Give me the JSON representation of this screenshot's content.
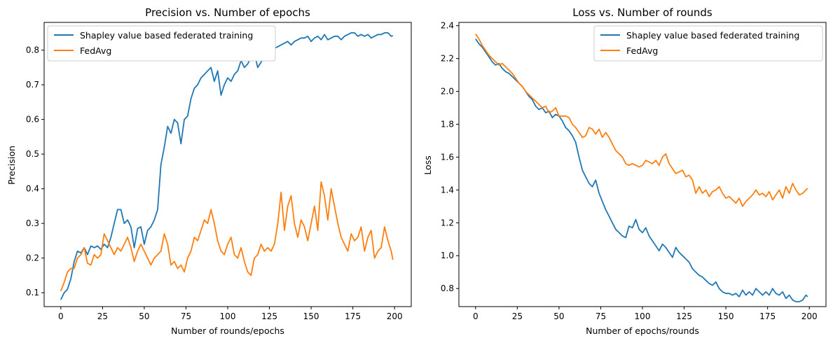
{
  "chart_data": [
    {
      "type": "line",
      "title": "Precision vs. Number of epochs",
      "xlabel": "Number of rounds/epochs",
      "ylabel": "Precision",
      "xlim": [
        -10,
        210
      ],
      "ylim": [
        0.06,
        0.88
      ],
      "xticks": [
        0,
        25,
        50,
        75,
        100,
        125,
        150,
        175,
        200
      ],
      "xtick_labels": [
        "0",
        "25",
        "50",
        "75",
        "100",
        "125",
        "150",
        "175",
        "200"
      ],
      "yticks": [
        0.1,
        0.2,
        0.3,
        0.4,
        0.5,
        0.6,
        0.7,
        0.8
      ],
      "ytick_labels": [
        "0.1",
        "0.2",
        "0.3",
        "0.4",
        "0.5",
        "0.6",
        "0.7",
        "0.8"
      ],
      "legend_position": "top-left",
      "grid": false,
      "series": [
        {
          "name": "Shapley value based federated training",
          "color": "#1f77b4",
          "x": [
            0,
            2,
            4,
            6,
            8,
            10,
            12,
            14,
            16,
            18,
            20,
            22,
            24,
            26,
            28,
            30,
            32,
            34,
            36,
            38,
            40,
            42,
            44,
            46,
            48,
            50,
            52,
            54,
            56,
            58,
            60,
            62,
            64,
            66,
            68,
            70,
            72,
            74,
            76,
            78,
            80,
            82,
            84,
            86,
            88,
            90,
            92,
            94,
            96,
            98,
            100,
            102,
            104,
            106,
            108,
            110,
            112,
            114,
            116,
            118,
            120,
            122,
            124,
            126,
            128,
            130,
            132,
            134,
            136,
            138,
            140,
            142,
            144,
            146,
            148,
            150,
            152,
            154,
            156,
            158,
            160,
            162,
            164,
            166,
            168,
            170,
            172,
            174,
            176,
            178,
            180,
            182,
            184,
            186,
            188,
            190,
            192,
            194,
            196,
            198,
            199
          ],
          "y": [
            0.08,
            0.1,
            0.11,
            0.14,
            0.19,
            0.22,
            0.215,
            0.23,
            0.21,
            0.235,
            0.23,
            0.235,
            0.225,
            0.24,
            0.23,
            0.26,
            0.3,
            0.34,
            0.34,
            0.3,
            0.31,
            0.29,
            0.23,
            0.285,
            0.29,
            0.24,
            0.28,
            0.29,
            0.31,
            0.34,
            0.47,
            0.52,
            0.58,
            0.56,
            0.6,
            0.59,
            0.53,
            0.6,
            0.61,
            0.66,
            0.69,
            0.7,
            0.72,
            0.73,
            0.74,
            0.75,
            0.71,
            0.74,
            0.67,
            0.7,
            0.72,
            0.71,
            0.73,
            0.74,
            0.77,
            0.75,
            0.76,
            0.78,
            0.79,
            0.75,
            0.765,
            0.78,
            0.79,
            0.8,
            0.805,
            0.81,
            0.815,
            0.82,
            0.825,
            0.815,
            0.825,
            0.83,
            0.835,
            0.835,
            0.84,
            0.825,
            0.835,
            0.84,
            0.83,
            0.845,
            0.83,
            0.835,
            0.84,
            0.84,
            0.83,
            0.84,
            0.845,
            0.85,
            0.85,
            0.84,
            0.845,
            0.84,
            0.845,
            0.835,
            0.84,
            0.845,
            0.845,
            0.85,
            0.85,
            0.84,
            0.842
          ]
        },
        {
          "name": "FedAvg",
          "color": "#ff7f0e",
          "x": [
            0,
            2,
            4,
            6,
            8,
            10,
            12,
            14,
            16,
            18,
            20,
            22,
            24,
            26,
            28,
            30,
            32,
            34,
            36,
            38,
            40,
            42,
            44,
            46,
            48,
            50,
            52,
            54,
            56,
            58,
            60,
            62,
            64,
            66,
            68,
            70,
            72,
            74,
            76,
            78,
            80,
            82,
            84,
            86,
            88,
            90,
            92,
            94,
            96,
            98,
            100,
            102,
            104,
            106,
            108,
            110,
            112,
            114,
            116,
            118,
            120,
            122,
            124,
            126,
            128,
            130,
            132,
            134,
            136,
            138,
            140,
            142,
            144,
            146,
            148,
            150,
            152,
            154,
            156,
            158,
            160,
            162,
            164,
            166,
            168,
            170,
            172,
            174,
            176,
            178,
            180,
            182,
            184,
            186,
            188,
            190,
            192,
            194,
            196,
            198,
            199
          ],
          "y": [
            0.105,
            0.13,
            0.16,
            0.17,
            0.17,
            0.2,
            0.21,
            0.23,
            0.185,
            0.18,
            0.21,
            0.2,
            0.21,
            0.27,
            0.25,
            0.23,
            0.21,
            0.23,
            0.22,
            0.24,
            0.26,
            0.23,
            0.19,
            0.22,
            0.24,
            0.22,
            0.2,
            0.18,
            0.2,
            0.21,
            0.22,
            0.27,
            0.24,
            0.18,
            0.19,
            0.17,
            0.18,
            0.16,
            0.2,
            0.22,
            0.26,
            0.25,
            0.28,
            0.31,
            0.3,
            0.34,
            0.3,
            0.25,
            0.22,
            0.21,
            0.24,
            0.26,
            0.21,
            0.2,
            0.23,
            0.19,
            0.16,
            0.15,
            0.2,
            0.21,
            0.24,
            0.22,
            0.23,
            0.22,
            0.24,
            0.3,
            0.39,
            0.28,
            0.35,
            0.38,
            0.3,
            0.26,
            0.31,
            0.29,
            0.25,
            0.3,
            0.35,
            0.28,
            0.42,
            0.38,
            0.31,
            0.4,
            0.35,
            0.3,
            0.26,
            0.24,
            0.22,
            0.27,
            0.25,
            0.26,
            0.29,
            0.22,
            0.26,
            0.28,
            0.2,
            0.22,
            0.23,
            0.29,
            0.25,
            0.22,
            0.195
          ]
        }
      ]
    },
    {
      "type": "line",
      "title": "Loss vs. Number of rounds",
      "xlabel": "Number of epochs/rounds",
      "ylabel": "Loss",
      "xlim": [
        -10,
        210
      ],
      "ylim": [
        0.69,
        2.42
      ],
      "xticks": [
        0,
        25,
        50,
        75,
        100,
        125,
        150,
        175,
        200
      ],
      "xtick_labels": [
        "0",
        "25",
        "50",
        "75",
        "100",
        "125",
        "150",
        "175",
        "200"
      ],
      "yticks": [
        0.8,
        1.0,
        1.2,
        1.4,
        1.6,
        1.8,
        2.0,
        2.2,
        2.4
      ],
      "ytick_labels": [
        "0.8",
        "1.0",
        "1.2",
        "1.4",
        "1.6",
        "1.8",
        "2.0",
        "2.2",
        "2.4"
      ],
      "legend_position": "top-right",
      "grid": false,
      "series": [
        {
          "name": "Shapley value based federated training",
          "color": "#1f77b4",
          "x": [
            0,
            2,
            4,
            6,
            8,
            10,
            12,
            14,
            16,
            18,
            20,
            22,
            24,
            26,
            28,
            30,
            32,
            34,
            36,
            38,
            40,
            42,
            44,
            46,
            48,
            50,
            52,
            54,
            56,
            58,
            60,
            62,
            64,
            66,
            68,
            70,
            72,
            74,
            76,
            78,
            80,
            82,
            84,
            86,
            88,
            90,
            92,
            94,
            96,
            98,
            100,
            102,
            104,
            106,
            108,
            110,
            112,
            114,
            116,
            118,
            120,
            122,
            124,
            126,
            128,
            130,
            132,
            134,
            136,
            138,
            140,
            142,
            144,
            146,
            148,
            150,
            152,
            154,
            156,
            158,
            160,
            162,
            164,
            166,
            168,
            170,
            172,
            174,
            176,
            178,
            180,
            182,
            184,
            186,
            188,
            190,
            192,
            194,
            196,
            198,
            199
          ],
          "y": [
            2.32,
            2.29,
            2.27,
            2.24,
            2.21,
            2.18,
            2.16,
            2.17,
            2.14,
            2.12,
            2.11,
            2.09,
            2.07,
            2.05,
            2.03,
            2.0,
            1.97,
            1.95,
            1.91,
            1.89,
            1.9,
            1.87,
            1.88,
            1.84,
            1.86,
            1.85,
            1.82,
            1.78,
            1.76,
            1.73,
            1.69,
            1.6,
            1.52,
            1.48,
            1.44,
            1.42,
            1.46,
            1.38,
            1.33,
            1.28,
            1.24,
            1.2,
            1.16,
            1.14,
            1.12,
            1.11,
            1.18,
            1.17,
            1.22,
            1.16,
            1.14,
            1.17,
            1.12,
            1.09,
            1.06,
            1.03,
            1.07,
            1.05,
            1.02,
            0.99,
            1.05,
            1.02,
            1.0,
            0.98,
            0.96,
            0.92,
            0.9,
            0.88,
            0.87,
            0.85,
            0.83,
            0.82,
            0.84,
            0.8,
            0.78,
            0.77,
            0.77,
            0.76,
            0.77,
            0.75,
            0.79,
            0.76,
            0.78,
            0.76,
            0.8,
            0.78,
            0.76,
            0.78,
            0.76,
            0.8,
            0.77,
            0.76,
            0.78,
            0.74,
            0.76,
            0.73,
            0.72,
            0.72,
            0.73,
            0.76,
            0.75
          ]
        },
        {
          "name": "FedAvg",
          "color": "#ff7f0e",
          "x": [
            0,
            2,
            4,
            6,
            8,
            10,
            12,
            14,
            16,
            18,
            20,
            22,
            24,
            26,
            28,
            30,
            32,
            34,
            36,
            38,
            40,
            42,
            44,
            46,
            48,
            50,
            52,
            54,
            56,
            58,
            60,
            62,
            64,
            66,
            68,
            70,
            72,
            74,
            76,
            78,
            80,
            82,
            84,
            86,
            88,
            90,
            92,
            94,
            96,
            98,
            100,
            102,
            104,
            106,
            108,
            110,
            112,
            114,
            116,
            118,
            120,
            122,
            124,
            126,
            128,
            130,
            132,
            134,
            136,
            138,
            140,
            142,
            144,
            146,
            148,
            150,
            152,
            154,
            156,
            158,
            160,
            162,
            164,
            166,
            168,
            170,
            172,
            174,
            176,
            178,
            180,
            182,
            184,
            186,
            188,
            190,
            192,
            194,
            196,
            198,
            199
          ],
          "y": [
            2.35,
            2.32,
            2.28,
            2.25,
            2.22,
            2.2,
            2.18,
            2.16,
            2.17,
            2.15,
            2.13,
            2.11,
            2.08,
            2.05,
            2.03,
            2.0,
            1.98,
            1.96,
            1.94,
            1.92,
            1.9,
            1.91,
            1.87,
            1.88,
            1.9,
            1.85,
            1.85,
            1.85,
            1.84,
            1.8,
            1.78,
            1.75,
            1.72,
            1.73,
            1.78,
            1.77,
            1.74,
            1.77,
            1.72,
            1.75,
            1.72,
            1.68,
            1.64,
            1.62,
            1.6,
            1.56,
            1.55,
            1.56,
            1.55,
            1.54,
            1.55,
            1.58,
            1.57,
            1.56,
            1.58,
            1.55,
            1.6,
            1.62,
            1.56,
            1.53,
            1.5,
            1.51,
            1.52,
            1.48,
            1.49,
            1.46,
            1.38,
            1.42,
            1.38,
            1.4,
            1.36,
            1.39,
            1.4,
            1.42,
            1.38,
            1.35,
            1.36,
            1.34,
            1.32,
            1.35,
            1.3,
            1.33,
            1.35,
            1.37,
            1.4,
            1.37,
            1.38,
            1.36,
            1.39,
            1.34,
            1.37,
            1.4,
            1.35,
            1.42,
            1.38,
            1.44,
            1.4,
            1.37,
            1.38,
            1.4,
            1.41
          ]
        }
      ]
    }
  ]
}
